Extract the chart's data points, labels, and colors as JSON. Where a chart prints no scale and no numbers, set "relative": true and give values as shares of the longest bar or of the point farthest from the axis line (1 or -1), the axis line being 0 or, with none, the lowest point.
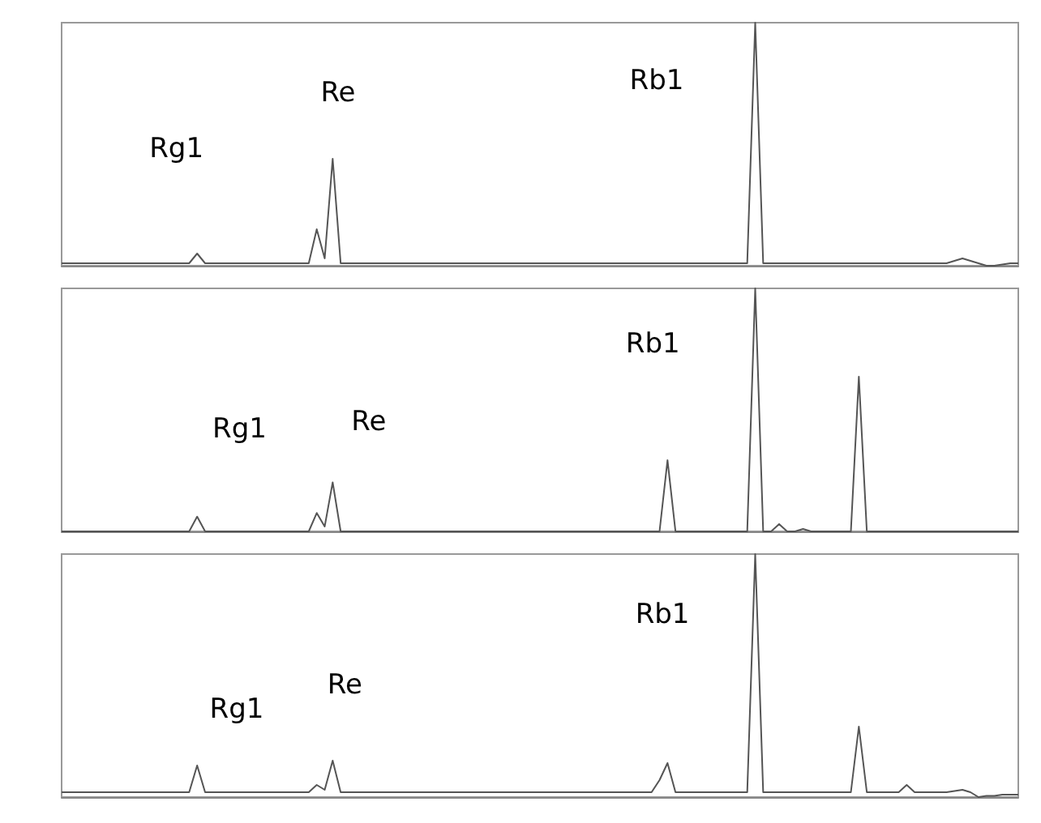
{
  "chart_data": [
    {
      "type": "line",
      "relative": true,
      "color": "#555555",
      "categories": [
        null,
        null,
        null,
        null,
        null,
        null,
        null,
        null,
        null,
        null,
        null,
        null,
        null,
        null,
        null,
        null,
        null,
        null,
        null,
        null,
        null,
        null,
        null,
        null,
        null,
        null,
        null,
        null,
        null,
        null,
        null,
        null,
        null,
        null,
        null,
        null,
        null,
        null,
        null,
        null,
        null,
        null,
        null,
        null,
        null,
        null,
        null,
        null,
        null,
        null,
        null,
        null,
        null,
        null,
        null,
        null,
        null,
        null,
        null,
        null,
        null,
        null,
        null,
        null,
        null,
        null,
        null,
        null,
        null,
        null,
        null,
        null,
        null,
        null,
        null,
        null,
        null,
        null,
        null,
        null,
        null,
        null,
        null,
        null,
        null,
        null,
        null,
        null,
        null,
        null,
        null,
        null,
        null,
        null,
        null,
        null,
        null,
        null,
        null,
        null,
        null,
        null,
        null,
        null,
        null,
        null,
        null,
        null,
        null,
        null,
        null,
        null,
        null,
        null,
        null,
        null,
        null,
        null,
        null,
        null,
        null
      ],
      "values": [
        0.01,
        0.01,
        0.01,
        0.01,
        0.01,
        0.01,
        0.01,
        0.01,
        0.01,
        0.01,
        0.01,
        0.01,
        0.01,
        0.01,
        0.01,
        0.01,
        0.01,
        0.05,
        0.01,
        0.01,
        0.01,
        0.01,
        0.01,
        0.01,
        0.01,
        0.01,
        0.01,
        0.01,
        0.01,
        0.01,
        0.01,
        0.01,
        0.15,
        0.03,
        0.44,
        0.01,
        0.01,
        0.01,
        0.01,
        0.01,
        0.01,
        0.01,
        0.01,
        0.01,
        0.01,
        0.01,
        0.01,
        0.01,
        0.01,
        0.01,
        0.01,
        0.01,
        0.01,
        0.01,
        0.01,
        0.01,
        0.01,
        0.01,
        0.01,
        0.01,
        0.01,
        0.01,
        0.01,
        0.01,
        0.01,
        0.01,
        0.01,
        0.01,
        0.01,
        0.01,
        0.01,
        0.01,
        0.01,
        0.01,
        0.01,
        0.01,
        0.01,
        0.01,
        0.01,
        0.01,
        0.01,
        0.01,
        0.01,
        0.01,
        0.01,
        0.01,
        0.01,
        1,
        0.01,
        0.01,
        0.01,
        0.01,
        0.01,
        0.01,
        0.01,
        0.01,
        0.01,
        0.01,
        0.01,
        0.01,
        0.01,
        0.01,
        0.01,
        0.01,
        0.01,
        0.01,
        0.01,
        0.01,
        0.01,
        0.01,
        0.01,
        0.01,
        0.02,
        0.03,
        0.02,
        0.01,
        0,
        0,
        0.005,
        0.01,
        0.01
      ],
      "annotations": [
        "Rg1",
        "Re",
        "Rb1"
      ]
    },
    {
      "type": "line",
      "relative": true,
      "color": "#555555",
      "categories": [
        null,
        null,
        null,
        null,
        null,
        null,
        null,
        null,
        null,
        null,
        null,
        null,
        null,
        null,
        null,
        null,
        null,
        null,
        null,
        null,
        null,
        null,
        null,
        null,
        null,
        null,
        null,
        null,
        null,
        null,
        null,
        null,
        null,
        null,
        null,
        null,
        null,
        null,
        null,
        null,
        null,
        null,
        null,
        null,
        null,
        null,
        null,
        null,
        null,
        null,
        null,
        null,
        null,
        null,
        null,
        null,
        null,
        null,
        null,
        null,
        null,
        null,
        null,
        null,
        null,
        null,
        null,
        null,
        null,
        null,
        null,
        null,
        null,
        null,
        null,
        null,
        null,
        null,
        null,
        null,
        null,
        null,
        null,
        null,
        null,
        null,
        null,
        null,
        null,
        null,
        null,
        null,
        null,
        null,
        null,
        null,
        null,
        null,
        null,
        null,
        null,
        null,
        null,
        null,
        null,
        null,
        null,
        null,
        null,
        null,
        null,
        null,
        null,
        null,
        null,
        null,
        null,
        null,
        null,
        null,
        null
      ],
      "values": [
        0.01,
        0.01,
        0.01,
        0.01,
        0.01,
        0.01,
        0.01,
        0.01,
        0.01,
        0.01,
        0.01,
        0.01,
        0.01,
        0.01,
        0.01,
        0.01,
        0.01,
        0.07,
        0.01,
        0.01,
        0.01,
        0.01,
        0.01,
        0.01,
        0.01,
        0.01,
        0.01,
        0.01,
        0.01,
        0.01,
        0.01,
        0.01,
        0.085,
        0.03,
        0.21,
        0.01,
        0.01,
        0.01,
        0.01,
        0.01,
        0.01,
        0.01,
        0.01,
        0.01,
        0.01,
        0.01,
        0.01,
        0.01,
        0.01,
        0.01,
        0.01,
        0.01,
        0.01,
        0.01,
        0.01,
        0.01,
        0.01,
        0.01,
        0.01,
        0.01,
        0.01,
        0.01,
        0.01,
        0.01,
        0.01,
        0.01,
        0.01,
        0.01,
        0.01,
        0.01,
        0.01,
        0.01,
        0.01,
        0.01,
        0.01,
        0.01,
        0.3,
        0.01,
        0.01,
        0.01,
        0.01,
        0.01,
        0.01,
        0.01,
        0.01,
        0.01,
        0.01,
        1,
        0.01,
        0.01,
        0.04,
        0.01,
        0.01,
        0.02,
        0.01,
        0.01,
        0.01,
        0.01,
        0.01,
        0.01,
        0.64,
        0.01,
        0.01,
        0.01,
        0.01,
        0.01,
        0.01,
        0.01,
        0.01,
        0.01,
        0.01,
        0.01,
        0.01,
        0.01,
        0.01,
        0.01,
        0.01,
        0.01,
        0.01,
        0.01,
        0.01
      ],
      "annotations": [
        "Rg1",
        "Re",
        "Rb1"
      ]
    },
    {
      "type": "line",
      "relative": true,
      "color": "#555555",
      "categories": [
        null,
        null,
        null,
        null,
        null,
        null,
        null,
        null,
        null,
        null,
        null,
        null,
        null,
        null,
        null,
        null,
        null,
        null,
        null,
        null,
        null,
        null,
        null,
        null,
        null,
        null,
        null,
        null,
        null,
        null,
        null,
        null,
        null,
        null,
        null,
        null,
        null,
        null,
        null,
        null,
        null,
        null,
        null,
        null,
        null,
        null,
        null,
        null,
        null,
        null,
        null,
        null,
        null,
        null,
        null,
        null,
        null,
        null,
        null,
        null,
        null,
        null,
        null,
        null,
        null,
        null,
        null,
        null,
        null,
        null,
        null,
        null,
        null,
        null,
        null,
        null,
        null,
        null,
        null,
        null,
        null,
        null,
        null,
        null,
        null,
        null,
        null,
        null,
        null,
        null,
        null,
        null,
        null,
        null,
        null,
        null,
        null,
        null,
        null,
        null,
        null,
        null,
        null,
        null,
        null,
        null,
        null,
        null,
        null,
        null,
        null,
        null,
        null,
        null,
        null,
        null,
        null,
        null,
        null,
        null,
        null
      ],
      "values": [
        0.02,
        0.02,
        0.02,
        0.02,
        0.02,
        0.02,
        0.02,
        0.02,
        0.02,
        0.02,
        0.02,
        0.02,
        0.02,
        0.02,
        0.02,
        0.02,
        0.02,
        0.13,
        0.02,
        0.02,
        0.02,
        0.02,
        0.02,
        0.02,
        0.02,
        0.02,
        0.02,
        0.02,
        0.02,
        0.02,
        0.02,
        0.02,
        0.05,
        0.03,
        0.15,
        0.02,
        0.02,
        0.02,
        0.02,
        0.02,
        0.02,
        0.02,
        0.02,
        0.02,
        0.02,
        0.02,
        0.02,
        0.02,
        0.02,
        0.02,
        0.02,
        0.02,
        0.02,
        0.02,
        0.02,
        0.02,
        0.02,
        0.02,
        0.02,
        0.02,
        0.02,
        0.02,
        0.02,
        0.02,
        0.02,
        0.02,
        0.02,
        0.02,
        0.02,
        0.02,
        0.02,
        0.02,
        0.02,
        0.02,
        0.02,
        0.07,
        0.14,
        0.02,
        0.02,
        0.02,
        0.02,
        0.02,
        0.02,
        0.02,
        0.02,
        0.02,
        0.02,
        1,
        0.02,
        0.02,
        0.02,
        0.02,
        0.02,
        0.02,
        0.02,
        0.02,
        0.02,
        0.02,
        0.02,
        0.02,
        0.29,
        0.02,
        0.02,
        0.02,
        0.02,
        0.02,
        0.05,
        0.02,
        0.02,
        0.02,
        0.02,
        0.02,
        0.025,
        0.03,
        0.02,
        0,
        0.005,
        0.005,
        0.01,
        0.01,
        0.01
      ],
      "annotations": [
        "Rg1",
        "Re",
        "Rb1"
      ]
    }
  ]
}
